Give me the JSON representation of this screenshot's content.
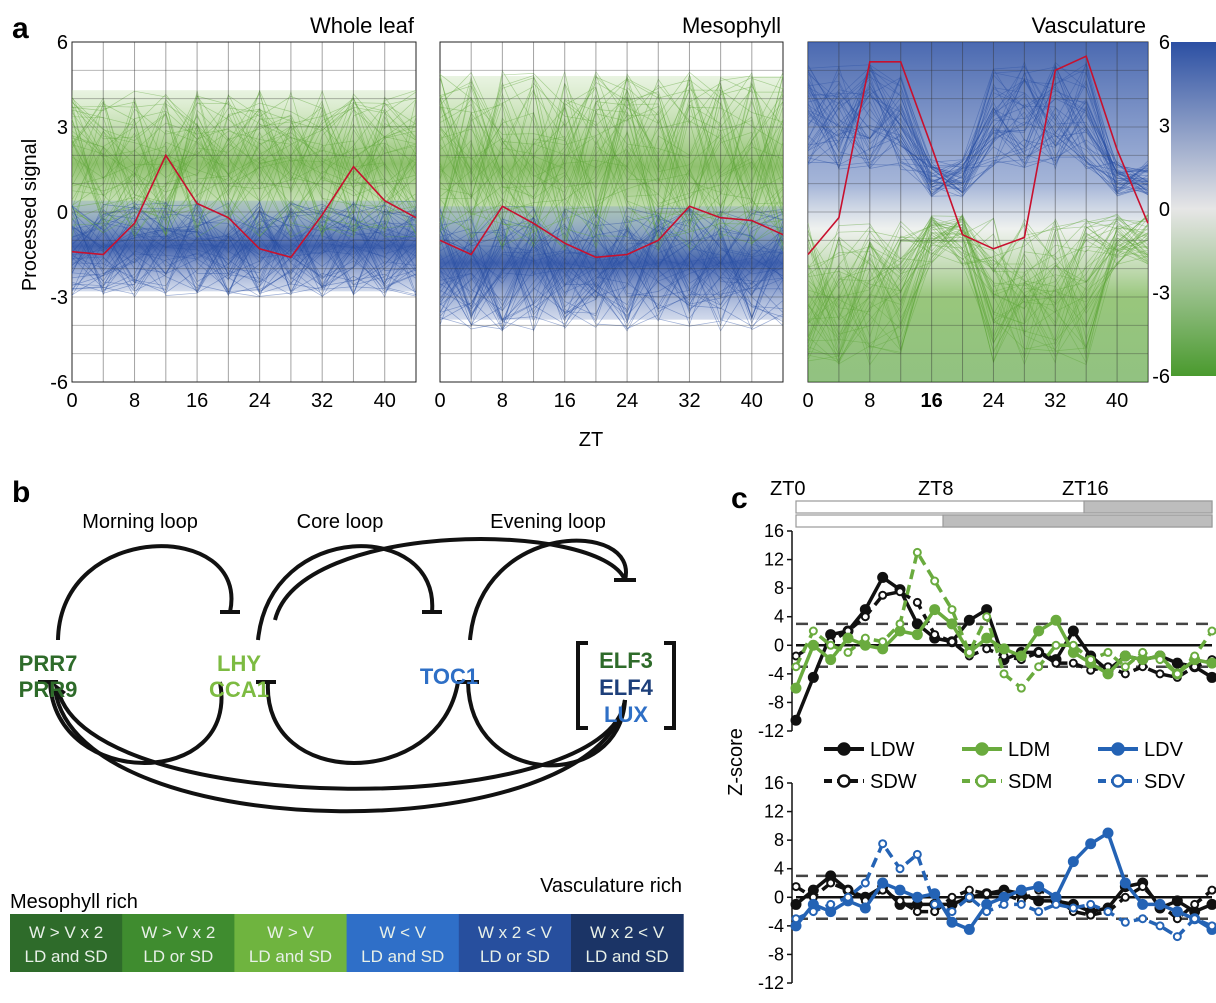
{
  "panel_letters": {
    "a": "a",
    "b": "b",
    "c": "c"
  },
  "panel_a": {
    "ylabel": "Processed signal",
    "xlabel": "ZT",
    "y_ticks": [
      "6",
      "3",
      "0",
      "-3",
      "-6"
    ],
    "x_ticks": [
      "0",
      "8",
      "16",
      "24",
      "32",
      "40"
    ],
    "highlighted_x_tick_vasculature": "16",
    "colorbar": {
      "ticks": [
        "6",
        "3",
        "0",
        "-3",
        "-6"
      ],
      "colors": [
        "#2b4fa3",
        "#e6e6e6",
        "#4a9a2e"
      ]
    },
    "line_color": "#c8102e"
  },
  "panel_b": {
    "loop_titles": [
      "Morning loop",
      "Core loop",
      "Evening loop"
    ],
    "genes": {
      "prr7": "PRR7",
      "prr9": "PRR9",
      "lhy": "LHY",
      "cca1": "CCA1",
      "toc1": "TOC1",
      "elf3": "ELF3",
      "elf4": "ELF4",
      "lux": "LUX"
    },
    "gene_colors": {
      "dark_green": "#2e6b2a",
      "light_green": "#7dbb42",
      "blue": "#2e6fc6",
      "dark_blue": "#1d3f7a"
    },
    "legend_left": "Mesophyll rich",
    "legend_right": "Vasculature rich",
    "legend_boxes": [
      {
        "line1": "W > V x 2",
        "line2": "LD and SD",
        "color": "#2e6b2a"
      },
      {
        "line1": "W > V x 2",
        "line2": "LD or SD",
        "color": "#3f8c2f"
      },
      {
        "line1": "W > V",
        "line2": "LD and SD",
        "color": "#6fb43f"
      },
      {
        "line1": "W < V",
        "line2": "LD and SD",
        "color": "#2f6fc8"
      },
      {
        "line1": "W x 2 < V",
        "line2": "LD or SD",
        "color": "#274f9e"
      },
      {
        "line1": "W x 2 < V",
        "line2": "LD and SD",
        "color": "#1b3466"
      }
    ]
  },
  "panel_c": {
    "time_labels": [
      "ZT0",
      "ZT8",
      "ZT16"
    ],
    "ylabel": "Z-score",
    "y_ticks": [
      "16",
      "12",
      "8",
      "4",
      "0",
      "-4",
      "-8",
      "-12"
    ],
    "legend": [
      {
        "label": "LDW",
        "color": "#111111",
        "style": "solid-filled"
      },
      {
        "label": "LDM",
        "color": "#6aab3e",
        "style": "solid-filled"
      },
      {
        "label": "LDV",
        "color": "#2463b5",
        "style": "solid-filled"
      },
      {
        "label": "SDW",
        "color": "#111111",
        "style": "dashed-open"
      },
      {
        "label": "SDM",
        "color": "#6aab3e",
        "style": "dashed-open"
      },
      {
        "label": "SDV",
        "color": "#2463b5",
        "style": "dashed-open"
      }
    ]
  },
  "chart_data": [
    {
      "type": "line",
      "title": "Whole leaf",
      "xlabel": "ZT",
      "ylabel": "Processed signal",
      "xlim": [
        0,
        44
      ],
      "ylim": [
        -6,
        6
      ],
      "series": [
        {
          "x": [
            0,
            4,
            8,
            12,
            16,
            20,
            24,
            28,
            32,
            36,
            40,
            44
          ],
          "values": [
            -1.4,
            -1.5,
            -0.4,
            2.0,
            0.3,
            -0.2,
            -1.3,
            -1.6,
            -0.1,
            1.6,
            0.4,
            -0.2
          ]
        }
      ]
    },
    {
      "type": "line",
      "title": "Mesophyll",
      "xlabel": "ZT",
      "xlim": [
        0,
        44
      ],
      "ylim": [
        -6,
        6
      ],
      "series": [
        {
          "x": [
            0,
            4,
            8,
            12,
            16,
            20,
            24,
            28,
            32,
            36,
            40,
            44
          ],
          "values": [
            -1.0,
            -1.5,
            0.2,
            -0.4,
            -1.1,
            -1.6,
            -1.5,
            -1.0,
            0.2,
            -0.2,
            -0.3,
            -0.8
          ]
        }
      ]
    },
    {
      "type": "line",
      "title": "Vasculature",
      "xlabel": "ZT",
      "xlim": [
        0,
        44
      ],
      "ylim": [
        -6,
        6
      ],
      "series": [
        {
          "x": [
            0,
            4,
            8,
            12,
            16,
            20,
            24,
            28,
            32,
            36,
            40,
            44
          ],
          "values": [
            -1.5,
            -0.2,
            5.3,
            5.3,
            2.3,
            -0.8,
            -1.3,
            -0.9,
            5.0,
            5.5,
            2.2,
            -0.4
          ]
        }
      ]
    },
    {
      "type": "line",
      "ylabel": "Z-score",
      "xlim": [
        0,
        24
      ],
      "ylim": [
        -12,
        16
      ],
      "series": [
        {
          "name": "LDW",
          "x": [
            0,
            1,
            2,
            3,
            4,
            5,
            6,
            7,
            8,
            9,
            10,
            11,
            12,
            13,
            14,
            15,
            16,
            17,
            18,
            19,
            20,
            21,
            22,
            23,
            24
          ],
          "values": [
            -10.5,
            -4.5,
            1.5,
            2,
            5,
            9.5,
            7.8,
            3,
            1,
            0.5,
            3.5,
            5,
            -2,
            -1,
            -1,
            -2,
            2,
            -1.5,
            -3.5,
            -1.5,
            -2,
            -1.5,
            -2.5,
            -3,
            -4.5
          ]
        },
        {
          "name": "SDW",
          "x": [
            0,
            1,
            2,
            3,
            4,
            5,
            6,
            7,
            8,
            9,
            10,
            11,
            12,
            13,
            14,
            15,
            16,
            17,
            18,
            19,
            20,
            21,
            22,
            23,
            24
          ],
          "values": [
            -1.5,
            0,
            0.5,
            2,
            4,
            7,
            7.5,
            6,
            1.5,
            0.5,
            -1.5,
            -0.5,
            -1.5,
            -2,
            -1,
            -2.5,
            -2.5,
            -3.5,
            -3,
            -4,
            -3,
            -4,
            -4.5,
            -3,
            -2
          ]
        },
        {
          "name": "LDM",
          "x": [
            0,
            1,
            2,
            3,
            4,
            5,
            6,
            7,
            8,
            9,
            10,
            11,
            12,
            13,
            14,
            15,
            16,
            17,
            18,
            19,
            20,
            21,
            22,
            23,
            24
          ],
          "values": [
            -6,
            0,
            -2,
            1,
            0,
            -0.5,
            2,
            1.5,
            5,
            3,
            -1,
            1,
            -0.5,
            -1.5,
            2,
            3.5,
            -1,
            -2.5,
            -4,
            -1.5,
            -2,
            -1.5,
            -4,
            -2,
            -2.5
          ]
        },
        {
          "name": "SDM",
          "x": [
            0,
            1,
            2,
            3,
            4,
            5,
            6,
            7,
            8,
            9,
            10,
            11,
            12,
            13,
            14,
            15,
            16,
            17,
            18,
            19,
            20,
            21,
            22,
            23,
            24
          ],
          "values": [
            -3,
            2,
            0,
            -1,
            1,
            0.5,
            3,
            13,
            9,
            5,
            -1,
            4,
            -4,
            -6,
            -3,
            0,
            0,
            -2,
            -1,
            -3,
            -1,
            -2,
            -4,
            -1.5,
            2
          ]
        }
      ]
    },
    {
      "type": "line",
      "ylabel": "Z-score",
      "xlim": [
        0,
        24
      ],
      "ylim": [
        -12,
        16
      ],
      "series": [
        {
          "name": "LDW",
          "x": [
            0,
            1,
            2,
            3,
            4,
            5,
            6,
            7,
            8,
            9,
            10,
            11,
            12,
            13,
            14,
            15,
            16,
            17,
            18,
            19,
            20,
            21,
            22,
            23,
            24
          ],
          "values": [
            -1,
            1,
            3,
            1,
            0,
            1.5,
            -1,
            -1,
            -1,
            -1,
            0,
            0.5,
            1,
            0.5,
            -0.5,
            -0.5,
            -1,
            -2,
            -1.5,
            1.5,
            2,
            -1.5,
            -0.5,
            -2,
            -1
          ]
        },
        {
          "name": "SDW",
          "x": [
            0,
            1,
            2,
            3,
            4,
            5,
            6,
            7,
            8,
            9,
            10,
            11,
            12,
            13,
            14,
            15,
            16,
            17,
            18,
            19,
            20,
            21,
            22,
            23,
            24
          ],
          "values": [
            1.5,
            0,
            2,
            1,
            -0.5,
            1,
            -0.5,
            -2,
            -2,
            0,
            1,
            0.5,
            0.5,
            -0.5,
            1,
            0,
            -2,
            -2.5,
            -2,
            0,
            1.5,
            -1,
            -3,
            -1,
            1
          ]
        },
        {
          "name": "LDV",
          "x": [
            0,
            1,
            2,
            3,
            4,
            5,
            6,
            7,
            8,
            9,
            10,
            11,
            12,
            13,
            14,
            15,
            16,
            17,
            18,
            19,
            20,
            21,
            22,
            23,
            24
          ],
          "values": [
            -4,
            -1,
            -2,
            -0.5,
            -1.5,
            2,
            1,
            0,
            0.5,
            -3.5,
            -4.5,
            -1,
            0,
            1,
            1.5,
            0,
            5,
            7.5,
            9,
            2,
            -1,
            -1,
            -2,
            -3,
            -4.5
          ]
        },
        {
          "name": "SDV",
          "x": [
            0,
            1,
            2,
            3,
            4,
            5,
            6,
            7,
            8,
            9,
            10,
            11,
            12,
            13,
            14,
            15,
            16,
            17,
            18,
            19,
            20,
            21,
            22,
            23,
            24
          ],
          "values": [
            -3,
            -2,
            -1,
            0,
            2,
            7.5,
            4,
            6,
            -1,
            -2,
            0,
            -2,
            -1,
            -1,
            -2,
            -1,
            -1.5,
            -1,
            -2,
            -3.5,
            -3,
            -4,
            -5.5,
            -3,
            -4
          ]
        }
      ]
    }
  ]
}
